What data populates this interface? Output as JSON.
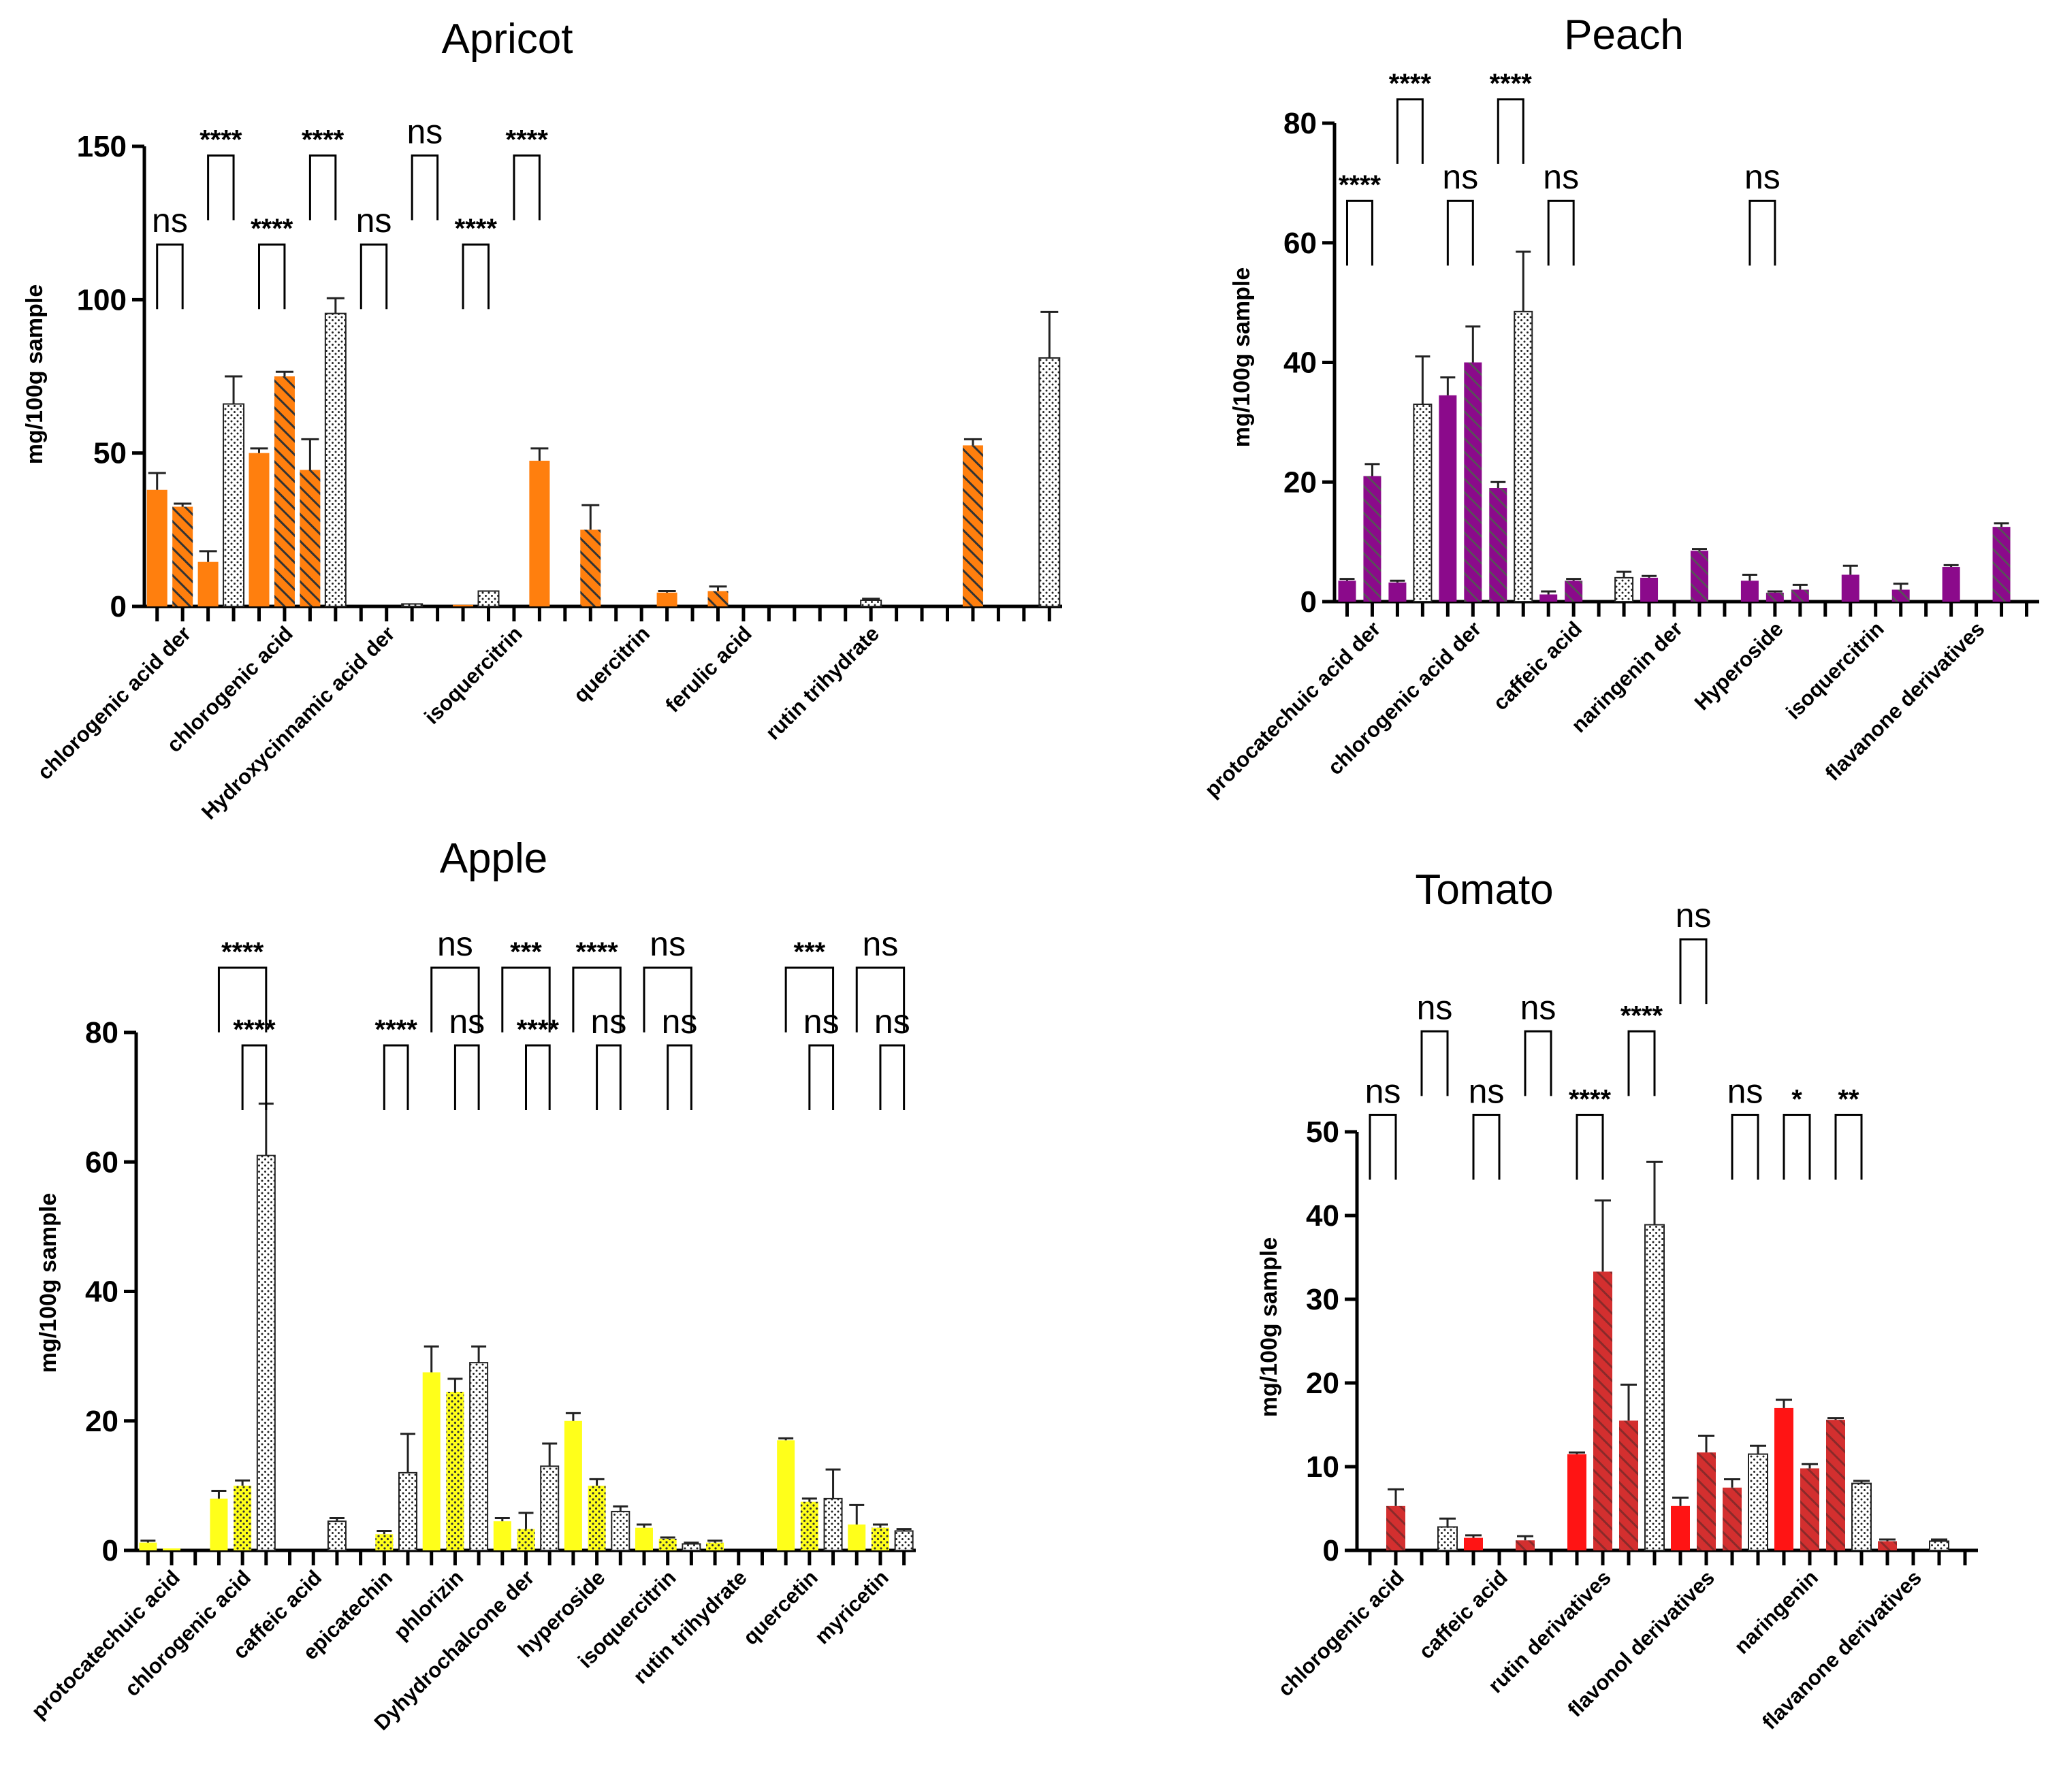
{
  "colors": {
    "apricot": "#ff7f0e",
    "peach": "#8b0a8b",
    "apple": "#ffff1a",
    "tomato": "#ff1414",
    "tomato_dark": "#c62828",
    "hatch_line": "#333333",
    "axis": "#000000"
  },
  "chart_data": [
    {
      "id": "apricot",
      "type": "bar",
      "title": "Apricot",
      "ylabel": "mg/100g sample",
      "ylim": [
        0,
        150
      ],
      "yticks": [
        0,
        50,
        100,
        150
      ],
      "patterns": [
        "solid",
        "hatched",
        "dotted"
      ],
      "bars": [
        {
          "v": 38,
          "e": 5.5,
          "p": "solid"
        },
        {
          "v": 32.5,
          "e": 1,
          "p": "hatched"
        },
        {
          "v": 14.5,
          "e": 3.5,
          "p": "solid"
        },
        {
          "v": 66,
          "e": 9,
          "p": "dotted"
        },
        {
          "v": 50,
          "e": 1.5,
          "p": "solid"
        },
        {
          "v": 75,
          "e": 1.5,
          "p": "hatched"
        },
        {
          "v": 44.5,
          "e": 10,
          "p": "hatched"
        },
        {
          "v": 95.5,
          "e": 5,
          "p": "dotted"
        },
        {
          "v": 0,
          "e": 0,
          "p": "solid"
        },
        {
          "v": 0,
          "e": 0,
          "p": "solid"
        },
        {
          "v": 0.8,
          "e": 0,
          "p": "dotted"
        },
        {
          "v": 0,
          "e": 0,
          "p": "solid"
        },
        {
          "v": 0.5,
          "e": 0,
          "p": "solid"
        },
        {
          "v": 5,
          "e": 0,
          "p": "dotted"
        },
        {
          "v": 0,
          "e": 0,
          "p": "solid"
        },
        {
          "v": 47.5,
          "e": 4,
          "p": "solid"
        },
        {
          "v": 0,
          "e": 0,
          "p": "solid"
        },
        {
          "v": 25,
          "e": 8,
          "p": "hatched"
        },
        {
          "v": 0,
          "e": 0,
          "p": "solid"
        },
        {
          "v": 0,
          "e": 0,
          "p": "solid"
        },
        {
          "v": 4.5,
          "e": 0.5,
          "p": "solid"
        },
        {
          "v": 0,
          "e": 0,
          "p": "solid"
        },
        {
          "v": 5,
          "e": 1.5,
          "p": "hatched"
        },
        {
          "v": 0,
          "e": 0,
          "p": "solid"
        },
        {
          "v": 0,
          "e": 0,
          "p": "solid"
        },
        {
          "v": 0,
          "e": 0,
          "p": "solid"
        },
        {
          "v": 0,
          "e": 0,
          "p": "solid"
        },
        {
          "v": 0,
          "e": 0,
          "p": "solid"
        },
        {
          "v": 2,
          "e": 0.5,
          "p": "dotted"
        },
        {
          "v": 0,
          "e": 0,
          "p": "solid"
        },
        {
          "v": 0,
          "e": 0,
          "p": "solid"
        },
        {
          "v": 0,
          "e": 0,
          "p": "solid"
        },
        {
          "v": 52.5,
          "e": 2,
          "p": "hatched"
        },
        {
          "v": 0,
          "e": 0,
          "p": "solid"
        },
        {
          "v": 0,
          "e": 0,
          "p": "solid"
        },
        {
          "v": 81,
          "e": 15,
          "p": "dotted"
        }
      ],
      "xlabels": [
        {
          "text": "chlorogenic acid der",
          "slot": 1
        },
        {
          "text": "chlorogenic acid",
          "slot": 5
        },
        {
          "text": "Hydroxycinnamic acid der",
          "slot": 9
        },
        {
          "text": "isoquercitrin",
          "slot": 14
        },
        {
          "text": "quercitrin",
          "slot": 19
        },
        {
          "text": "ferulic acid",
          "slot": 23
        },
        {
          "text": "rutin trihydrate",
          "slot": 28
        }
      ],
      "sig": [
        {
          "a": 0,
          "b": 1,
          "label": "ns",
          "level": 118
        },
        {
          "a": 2,
          "b": 3,
          "label": "****",
          "level": 147
        },
        {
          "a": 4,
          "b": 5,
          "label": "****",
          "level": 118
        },
        {
          "a": 6,
          "b": 7,
          "label": "****",
          "level": 147
        },
        {
          "a": 8,
          "b": 9,
          "label": "ns",
          "level": 118
        },
        {
          "a": 10,
          "b": 11,
          "label": "ns",
          "level": 147
        },
        {
          "a": 12,
          "b": 13,
          "label": "****",
          "level": 118
        },
        {
          "a": 14,
          "b": 15,
          "label": "****",
          "level": 147
        }
      ]
    },
    {
      "id": "peach",
      "type": "bar",
      "title": "Peach",
      "ylabel": "mg/100g sample",
      "ylim": [
        0,
        80
      ],
      "yticks": [
        0,
        20,
        40,
        60,
        80
      ],
      "patterns": [
        "solid",
        "hatched",
        "dotted"
      ],
      "bars": [
        {
          "v": 3.5,
          "e": 0.3,
          "p": "solid"
        },
        {
          "v": 21,
          "e": 2,
          "p": "hatched"
        },
        {
          "v": 3.2,
          "e": 0.3,
          "p": "solid"
        },
        {
          "v": 33,
          "e": 8,
          "p": "dotted"
        },
        {
          "v": 34.5,
          "e": 3,
          "p": "solid"
        },
        {
          "v": 40,
          "e": 6,
          "p": "hatched"
        },
        {
          "v": 19,
          "e": 1,
          "p": "hatched"
        },
        {
          "v": 48.5,
          "e": 10,
          "p": "dotted"
        },
        {
          "v": 1.2,
          "e": 0.5,
          "p": "solid"
        },
        {
          "v": 3.5,
          "e": 0.3,
          "p": "hatched"
        },
        {
          "v": 0,
          "e": 0,
          "p": "solid"
        },
        {
          "v": 4,
          "e": 1,
          "p": "dotted"
        },
        {
          "v": 4,
          "e": 0.3,
          "p": "solid"
        },
        {
          "v": 0,
          "e": 0,
          "p": "solid"
        },
        {
          "v": 8.5,
          "e": 0.3,
          "p": "hatched"
        },
        {
          "v": 0,
          "e": 0,
          "p": "solid"
        },
        {
          "v": 3.5,
          "e": 1,
          "p": "solid"
        },
        {
          "v": 1.5,
          "e": 0.2,
          "p": "hatched"
        },
        {
          "v": 2,
          "e": 0.8,
          "p": "hatched"
        },
        {
          "v": 0,
          "e": 0,
          "p": "solid"
        },
        {
          "v": 4.5,
          "e": 1.5,
          "p": "solid"
        },
        {
          "v": 0,
          "e": 0,
          "p": "solid"
        },
        {
          "v": 2,
          "e": 1,
          "p": "hatched"
        },
        {
          "v": 0,
          "e": 0,
          "p": "solid"
        },
        {
          "v": 5.8,
          "e": 0.3,
          "p": "solid"
        },
        {
          "v": 0,
          "e": 0,
          "p": "solid"
        },
        {
          "v": 12.5,
          "e": 0.6,
          "p": "hatched"
        },
        {
          "v": 0,
          "e": 0,
          "p": "solid"
        }
      ],
      "xlabels": [
        {
          "text": "protocatechuic acid der",
          "slot": 1
        },
        {
          "text": "chlorogenic acid der",
          "slot": 5
        },
        {
          "text": "caffeic acid",
          "slot": 9
        },
        {
          "text": "naringenin der",
          "slot": 13
        },
        {
          "text": "Hyperoside",
          "slot": 17
        },
        {
          "text": "isoquercitrin",
          "slot": 21
        },
        {
          "text": "flavanone derivatives",
          "slot": 25
        }
      ],
      "sig": [
        {
          "a": 0,
          "b": 1,
          "label": "****",
          "level": 67
        },
        {
          "a": 2,
          "b": 3,
          "label": "****",
          "level": 84
        },
        {
          "a": 4,
          "b": 5,
          "label": "ns",
          "level": 67
        },
        {
          "a": 6,
          "b": 7,
          "label": "****",
          "level": 84
        },
        {
          "a": 8,
          "b": 9,
          "label": "ns",
          "level": 67
        },
        {
          "a": 16,
          "b": 17,
          "label": "ns",
          "level": 67
        }
      ]
    },
    {
      "id": "apple",
      "type": "bar",
      "title": "Apple",
      "ylabel": "mg/100g sample",
      "ylim": [
        0,
        80
      ],
      "yticks": [
        0,
        20,
        40,
        60,
        80
      ],
      "patterns": [
        "solid",
        "dotted-color",
        "dotted"
      ],
      "bars": [
        {
          "v": 1.2,
          "e": 0.3,
          "p": "solid"
        },
        {
          "v": 0.3,
          "e": 0,
          "p": "solid"
        },
        {
          "v": 0,
          "e": 0,
          "p": "solid"
        },
        {
          "v": 8,
          "e": 1.2,
          "p": "solid"
        },
        {
          "v": 10,
          "e": 0.8,
          "p": "dotted-color"
        },
        {
          "v": 61,
          "e": 8,
          "p": "dotted"
        },
        {
          "v": 0,
          "e": 0,
          "p": "solid"
        },
        {
          "v": 0,
          "e": 0,
          "p": "solid"
        },
        {
          "v": 4.5,
          "e": 0.5,
          "p": "dotted"
        },
        {
          "v": 0,
          "e": 0,
          "p": "solid"
        },
        {
          "v": 2.5,
          "e": 0.5,
          "p": "dotted-color"
        },
        {
          "v": 12,
          "e": 6,
          "p": "dotted"
        },
        {
          "v": 27.5,
          "e": 4,
          "p": "solid"
        },
        {
          "v": 24.5,
          "e": 2,
          "p": "dotted-color"
        },
        {
          "v": 29,
          "e": 2.5,
          "p": "dotted"
        },
        {
          "v": 4.5,
          "e": 0.5,
          "p": "solid"
        },
        {
          "v": 3.3,
          "e": 2.5,
          "p": "dotted-color"
        },
        {
          "v": 13,
          "e": 3.5,
          "p": "dotted"
        },
        {
          "v": 20,
          "e": 1.2,
          "p": "solid"
        },
        {
          "v": 10,
          "e": 1,
          "p": "dotted-color"
        },
        {
          "v": 6,
          "e": 0.8,
          "p": "dotted"
        },
        {
          "v": 3.5,
          "e": 0.5,
          "p": "solid"
        },
        {
          "v": 1.8,
          "e": 0.2,
          "p": "dotted-color"
        },
        {
          "v": 1,
          "e": 0.2,
          "p": "dotted"
        },
        {
          "v": 1.2,
          "e": 0.3,
          "p": "dotted-color"
        },
        {
          "v": 0,
          "e": 0,
          "p": "solid"
        },
        {
          "v": 0,
          "e": 0,
          "p": "solid"
        },
        {
          "v": 17,
          "e": 0.3,
          "p": "solid"
        },
        {
          "v": 7.5,
          "e": 0.5,
          "p": "dotted-color"
        },
        {
          "v": 8,
          "e": 4.5,
          "p": "dotted"
        },
        {
          "v": 4,
          "e": 3,
          "p": "solid"
        },
        {
          "v": 3.5,
          "e": 0.5,
          "p": "dotted-color"
        },
        {
          "v": 3,
          "e": 0.3,
          "p": "dotted"
        }
      ],
      "xlabels": [
        {
          "text": "protocatechuic acid",
          "slot": 1
        },
        {
          "text": "chlorogenic acid",
          "slot": 4
        },
        {
          "text": "caffeic acid",
          "slot": 7
        },
        {
          "text": "epicatechin",
          "slot": 10
        },
        {
          "text": "phlorizin",
          "slot": 13
        },
        {
          "text": "Dyhydrochalcone der",
          "slot": 16
        },
        {
          "text": "hyperoside",
          "slot": 19
        },
        {
          "text": "isoquercitrin",
          "slot": 22
        },
        {
          "text": "rutin trihydrate",
          "slot": 25
        },
        {
          "text": "quercetin",
          "slot": 28
        },
        {
          "text": "myricetin",
          "slot": 31
        }
      ],
      "sig": [
        {
          "a": 3,
          "b": 5,
          "label": "****",
          "level": 90
        },
        {
          "a": 4,
          "b": 5,
          "label": "****",
          "level": 78
        },
        {
          "a": 10,
          "b": 11,
          "label": "****",
          "level": 78
        },
        {
          "a": 12,
          "b": 14,
          "label": "ns",
          "level": 90
        },
        {
          "a": 13,
          "b": 14,
          "label": "ns",
          "level": 78
        },
        {
          "a": 15,
          "b": 17,
          "label": "***",
          "level": 90
        },
        {
          "a": 16,
          "b": 17,
          "label": "****",
          "level": 78
        },
        {
          "a": 18,
          "b": 20,
          "label": "****",
          "level": 90
        },
        {
          "a": 19,
          "b": 20,
          "label": "ns",
          "level": 78
        },
        {
          "a": 21,
          "b": 23,
          "label": "ns",
          "level": 90
        },
        {
          "a": 22,
          "b": 23,
          "label": "ns",
          "level": 78
        },
        {
          "a": 27,
          "b": 29,
          "label": "***",
          "level": 90
        },
        {
          "a": 28,
          "b": 29,
          "label": "ns",
          "level": 78
        },
        {
          "a": 30,
          "b": 32,
          "label": "ns",
          "level": 90
        },
        {
          "a": 31,
          "b": 32,
          "label": "ns",
          "level": 78
        }
      ]
    },
    {
      "id": "tomato",
      "type": "bar",
      "title": "Tomato",
      "ylabel": "mg/100g sample",
      "ylim": [
        0,
        50
      ],
      "yticks": [
        0,
        10,
        20,
        30,
        40,
        50
      ],
      "patterns": [
        "solid",
        "hatched-red",
        "dotted"
      ],
      "bars": [
        {
          "v": 0,
          "e": 0,
          "p": "solid"
        },
        {
          "v": 5.3,
          "e": 2,
          "p": "hatched-red"
        },
        {
          "v": 0,
          "e": 0,
          "p": "solid"
        },
        {
          "v": 2.8,
          "e": 1,
          "p": "dotted"
        },
        {
          "v": 1.5,
          "e": 0.3,
          "p": "solid"
        },
        {
          "v": 0,
          "e": 0,
          "p": "solid"
        },
        {
          "v": 1.2,
          "e": 0.5,
          "p": "hatched-red"
        },
        {
          "v": 0,
          "e": 0,
          "p": "solid"
        },
        {
          "v": 11.5,
          "e": 0.2,
          "p": "solid"
        },
        {
          "v": 33.3,
          "e": 8.5,
          "p": "hatched-red"
        },
        {
          "v": 15.5,
          "e": 4.3,
          "p": "hatched-red"
        },
        {
          "v": 38.9,
          "e": 7.5,
          "p": "dotted"
        },
        {
          "v": 5.3,
          "e": 1,
          "p": "solid"
        },
        {
          "v": 11.7,
          "e": 2,
          "p": "hatched-red"
        },
        {
          "v": 7.5,
          "e": 1,
          "p": "hatched-red"
        },
        {
          "v": 11.5,
          "e": 1,
          "p": "dotted"
        },
        {
          "v": 17,
          "e": 1,
          "p": "solid"
        },
        {
          "v": 9.8,
          "e": 0.5,
          "p": "hatched-red"
        },
        {
          "v": 15.6,
          "e": 0.2,
          "p": "hatched-red"
        },
        {
          "v": 8,
          "e": 0.3,
          "p": "dotted"
        },
        {
          "v": 1.1,
          "e": 0.2,
          "p": "hatched-red"
        },
        {
          "v": 0,
          "e": 0,
          "p": "solid"
        },
        {
          "v": 1.1,
          "e": 0.2,
          "p": "dotted"
        },
        {
          "v": 0,
          "e": 0,
          "p": "solid"
        }
      ],
      "xlabels": [
        {
          "text": "chlorogenic acid",
          "slot": 1
        },
        {
          "text": "caffeic acid",
          "slot": 5
        },
        {
          "text": "rutin derivatives",
          "slot": 9
        },
        {
          "text": "flavonol derivatives",
          "slot": 13
        },
        {
          "text": "naringenin",
          "slot": 17
        },
        {
          "text": "flavanone derivatives",
          "slot": 21
        }
      ],
      "sig": [
        {
          "a": 0,
          "b": 1,
          "label": "ns",
          "level": 52
        },
        {
          "a": 2,
          "b": 3,
          "label": "ns",
          "level": 62
        },
        {
          "a": 4,
          "b": 5,
          "label": "ns",
          "level": 52
        },
        {
          "a": 6,
          "b": 7,
          "label": "ns",
          "level": 62
        },
        {
          "a": 8,
          "b": 9,
          "label": "****",
          "level": 52
        },
        {
          "a": 10,
          "b": 11,
          "label": "****",
          "level": 62
        },
        {
          "a": 12,
          "b": 13,
          "label": "ns",
          "level": 73
        },
        {
          "a": 14,
          "b": 15,
          "label": "ns",
          "level": 52
        },
        {
          "a": 16,
          "b": 17,
          "label": "*",
          "level": 52
        },
        {
          "a": 18,
          "b": 19,
          "label": "**",
          "level": 52
        }
      ]
    }
  ]
}
